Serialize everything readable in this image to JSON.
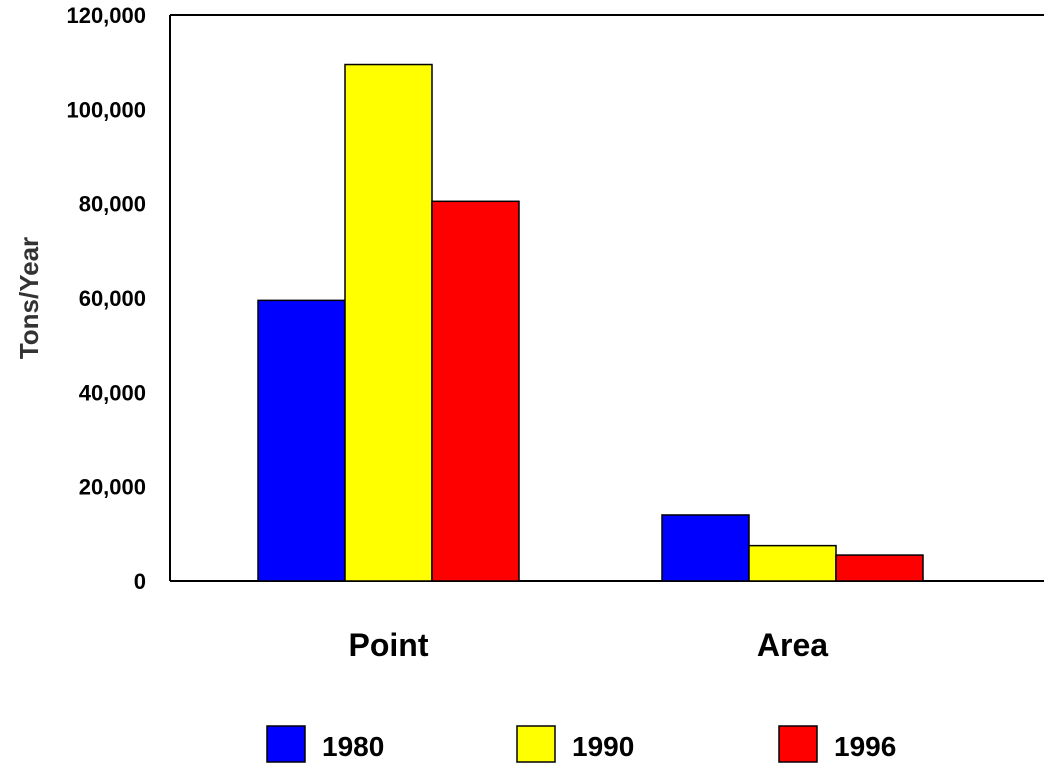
{
  "chart_data": {
    "type": "bar",
    "categories": [
      "Point",
      "Area"
    ],
    "series": [
      {
        "name": "1980",
        "values": [
          59500,
          14000
        ],
        "color": "#0000ff"
      },
      {
        "name": "1990",
        "values": [
          109500,
          7500
        ],
        "color": "#ffff00"
      },
      {
        "name": "1996",
        "values": [
          80500,
          5500
        ],
        "color": "#ff0000"
      }
    ],
    "title": "",
    "xlabel": "",
    "ylabel": "Tons/Year",
    "ylim": [
      0,
      120000
    ],
    "yticks": [
      0,
      20000,
      40000,
      60000,
      80000,
      100000,
      120000
    ],
    "ytick_labels": [
      "0",
      "20,000",
      "40,000",
      "60,000",
      "80,000",
      "100,000",
      "120,000"
    ],
    "grid": false,
    "legend_position": "bottom"
  }
}
